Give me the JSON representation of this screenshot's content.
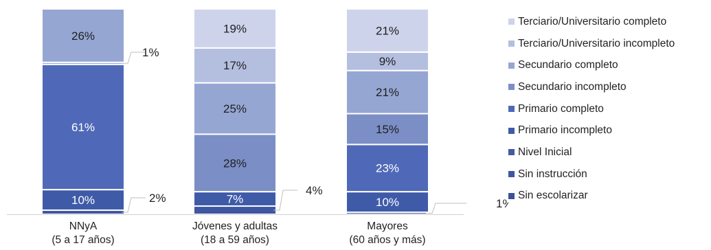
{
  "chart_data": {
    "type": "bar",
    "stacked": true,
    "percent_scale": true,
    "categories": [
      [
        "NNyA",
        "(5 a 17 años)"
      ],
      [
        "Jóvenes y adultas",
        "(18 a 59 años)"
      ],
      [
        "Mayores",
        "(60 años  y más)"
      ]
    ],
    "series": [
      {
        "name": "Sin escolarizar",
        "color": "#3b5296",
        "values": [
          0,
          0,
          0
        ]
      },
      {
        "name": "Sin instrucción",
        "color": "#3f56a0",
        "values": [
          2,
          4,
          1
        ]
      },
      {
        "name": "Nivel Inicial",
        "color": "#455aa0",
        "values": [
          0,
          0,
          0
        ]
      },
      {
        "name": "Primario incompleto",
        "color": "#3f5ba8",
        "values": [
          10,
          7,
          10
        ]
      },
      {
        "name": "Primario completo",
        "color": "#4f69b8",
        "values": [
          61,
          0,
          23
        ]
      },
      {
        "name": "Secundario incompleto",
        "color": "#7b8ec6",
        "values": [
          1,
          28,
          15
        ]
      },
      {
        "name": "Secundario completo",
        "color": "#96a6d3",
        "values": [
          26,
          25,
          21
        ]
      },
      {
        "name": "Terciario/Universitario incompleto",
        "color": "#b4bfe0",
        "values": [
          0,
          17,
          9
        ]
      },
      {
        "name": "Terciario/Universitario completo",
        "color": "#cdd3ea",
        "values": [
          0,
          19,
          21
        ]
      }
    ],
    "data_labels": [
      [
        {
          "series": "Sin instrucción",
          "text": "2%",
          "callout": true
        },
        {
          "series": "Primario incompleto",
          "text": "10%"
        },
        {
          "series": "Primario completo",
          "text": "61%"
        },
        {
          "series": "Secundario incompleto",
          "text": "1%",
          "callout": true
        },
        {
          "series": "Secundario completo",
          "text": "26%"
        }
      ],
      [
        {
          "series": "Sin instrucción",
          "text": "4%",
          "callout": true
        },
        {
          "series": "Primario incompleto",
          "text": "7%"
        },
        {
          "series": "Secundario incompleto",
          "text": "28%"
        },
        {
          "series": "Secundario completo",
          "text": "25%"
        },
        {
          "series": "Terciario/Universitario incompleto",
          "text": "17%"
        },
        {
          "series": "Terciario/Universitario completo",
          "text": "19%"
        }
      ],
      [
        {
          "series": "Sin instrucción",
          "text": "1%",
          "callout": true
        },
        {
          "series": "Primario incompleto",
          "text": "10%"
        },
        {
          "series": "Primario completo",
          "text": "23%"
        },
        {
          "series": "Secundario incompleto",
          "text": "15%"
        },
        {
          "series": "Secundario completo",
          "text": "21%"
        },
        {
          "series": "Terciario/Universitario incompleto",
          "text": "9%"
        },
        {
          "series": "Terciario/Universitario completo",
          "text": "21%"
        }
      ]
    ],
    "legend": {
      "position": "right",
      "order": [
        "Terciario/Universitario completo",
        "Terciario/Universitario incompleto",
        "Secundario completo",
        "Secundario incompleto",
        "Primario completo",
        "Primario incompleto",
        "Nivel Inicial",
        "Sin instrucción",
        "Sin escolarizar"
      ]
    },
    "title": "",
    "xlabel": "",
    "ylabel": "",
    "grid": false
  }
}
